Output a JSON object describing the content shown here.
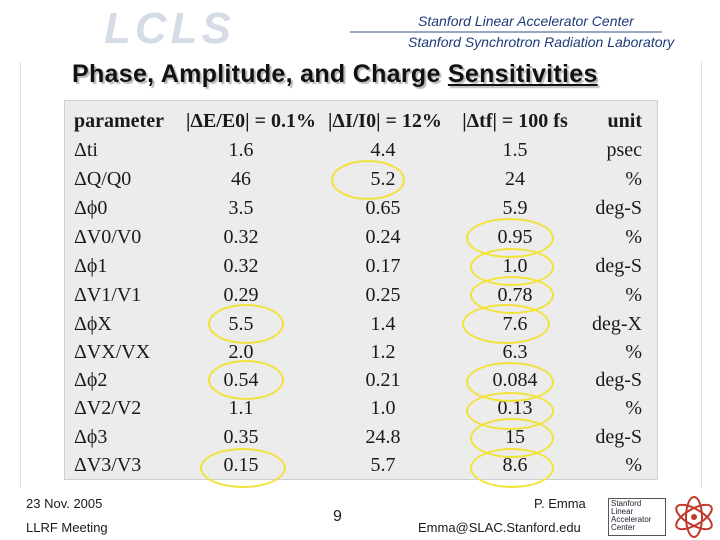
{
  "header": {
    "logo": "LCLS",
    "org_line1": "Stanford Linear Accelerator Center",
    "org_line2": "Stanford Synchrotron Radiation Laboratory"
  },
  "title": {
    "main": "Phase, Amplitude, and Charge ",
    "underlined": "Sensitivities"
  },
  "table": {
    "headers": [
      "parameter",
      "|ΔE/E0| = 0.1%",
      "|ΔI/I0| = 12%",
      "|Δtf| = 100 fs",
      "unit"
    ],
    "rows": [
      {
        "param": "Δti",
        "v1": "1.6",
        "v2": "4.4",
        "v3": "1.5",
        "unit": "psec"
      },
      {
        "param": "ΔQ/Q0",
        "v1": "46",
        "v2": "5.2",
        "v3": "24",
        "unit": "%"
      },
      {
        "param": "Δϕ0",
        "v1": "3.5",
        "v2": "0.65",
        "v3": "5.9",
        "unit": "deg-S"
      },
      {
        "param": "ΔV0/V0",
        "v1": "0.32",
        "v2": "0.24",
        "v3": "0.95",
        "unit": "%"
      },
      {
        "param": "Δϕ1",
        "v1": "0.32",
        "v2": "0.17",
        "v3": "1.0",
        "unit": "deg-S"
      },
      {
        "param": "ΔV1/V1",
        "v1": "0.29",
        "v2": "0.25",
        "v3": "0.78",
        "unit": "%"
      },
      {
        "param": "ΔϕX",
        "v1": "5.5",
        "v2": "1.4",
        "v3": "7.6",
        "unit": "deg-X"
      },
      {
        "param": "ΔVX/VX",
        "v1": "2.0",
        "v2": "1.2",
        "v3": "6.3",
        "unit": "%"
      },
      {
        "param": "Δϕ2",
        "v1": "0.54",
        "v2": "0.21",
        "v3": "0.084",
        "unit": "deg-S"
      },
      {
        "param": "ΔV2/V2",
        "v1": "1.1",
        "v2": "1.0",
        "v3": "0.13",
        "unit": "%"
      },
      {
        "param": "Δϕ3",
        "v1": "0.35",
        "v2": "24.8",
        "v3": "15",
        "unit": "deg-S"
      },
      {
        "param": "ΔV3/V3",
        "v1": "0.15",
        "v2": "5.7",
        "v3": "8.6",
        "unit": "%"
      }
    ]
  },
  "footer": {
    "date": "23 Nov. 2005",
    "meeting": "LLRF Meeting",
    "page": "9",
    "author": "P. Emma",
    "email": "Emma@SLAC.Stanford.edu",
    "badge_text": "Stanford Linear Accelerator Center"
  },
  "colors": {
    "highlight_ring": "#f2e23a",
    "header_text": "#1f3a78"
  }
}
